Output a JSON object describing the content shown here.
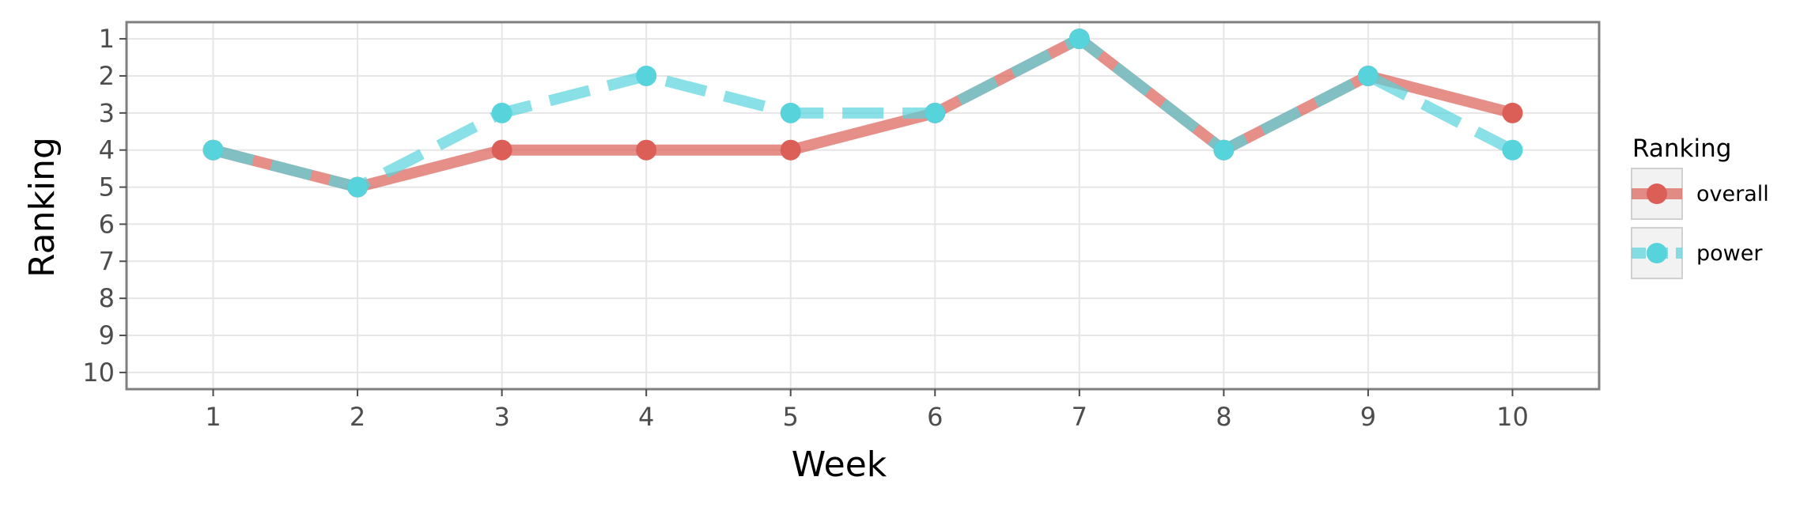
{
  "chart_data": {
    "type": "line",
    "xlabel": "Week",
    "ylabel": "Ranking",
    "x": [
      1,
      2,
      3,
      4,
      5,
      6,
      7,
      8,
      9,
      10
    ],
    "x_ticks": [
      "1",
      "2",
      "3",
      "4",
      "5",
      "6",
      "7",
      "8",
      "9",
      "10"
    ],
    "y_ticks": [
      "1",
      "2",
      "3",
      "4",
      "5",
      "6",
      "7",
      "8",
      "9",
      "10"
    ],
    "xlim": [
      0.4,
      10.6
    ],
    "ylim": [
      10.45,
      0.55
    ],
    "y_reversed": true,
    "grid": true,
    "legend": {
      "title": "Ranking",
      "position": "right"
    },
    "series": [
      {
        "name": "overall",
        "color": "#db5f57",
        "linestyle": "solid",
        "values": [
          4,
          5,
          4,
          4,
          4,
          3,
          1,
          4,
          2,
          3
        ]
      },
      {
        "name": "power",
        "color": "#57d3db",
        "linestyle": "dashed",
        "values": [
          4,
          5,
          3,
          2,
          3,
          3,
          1,
          4,
          2,
          4
        ]
      }
    ]
  }
}
